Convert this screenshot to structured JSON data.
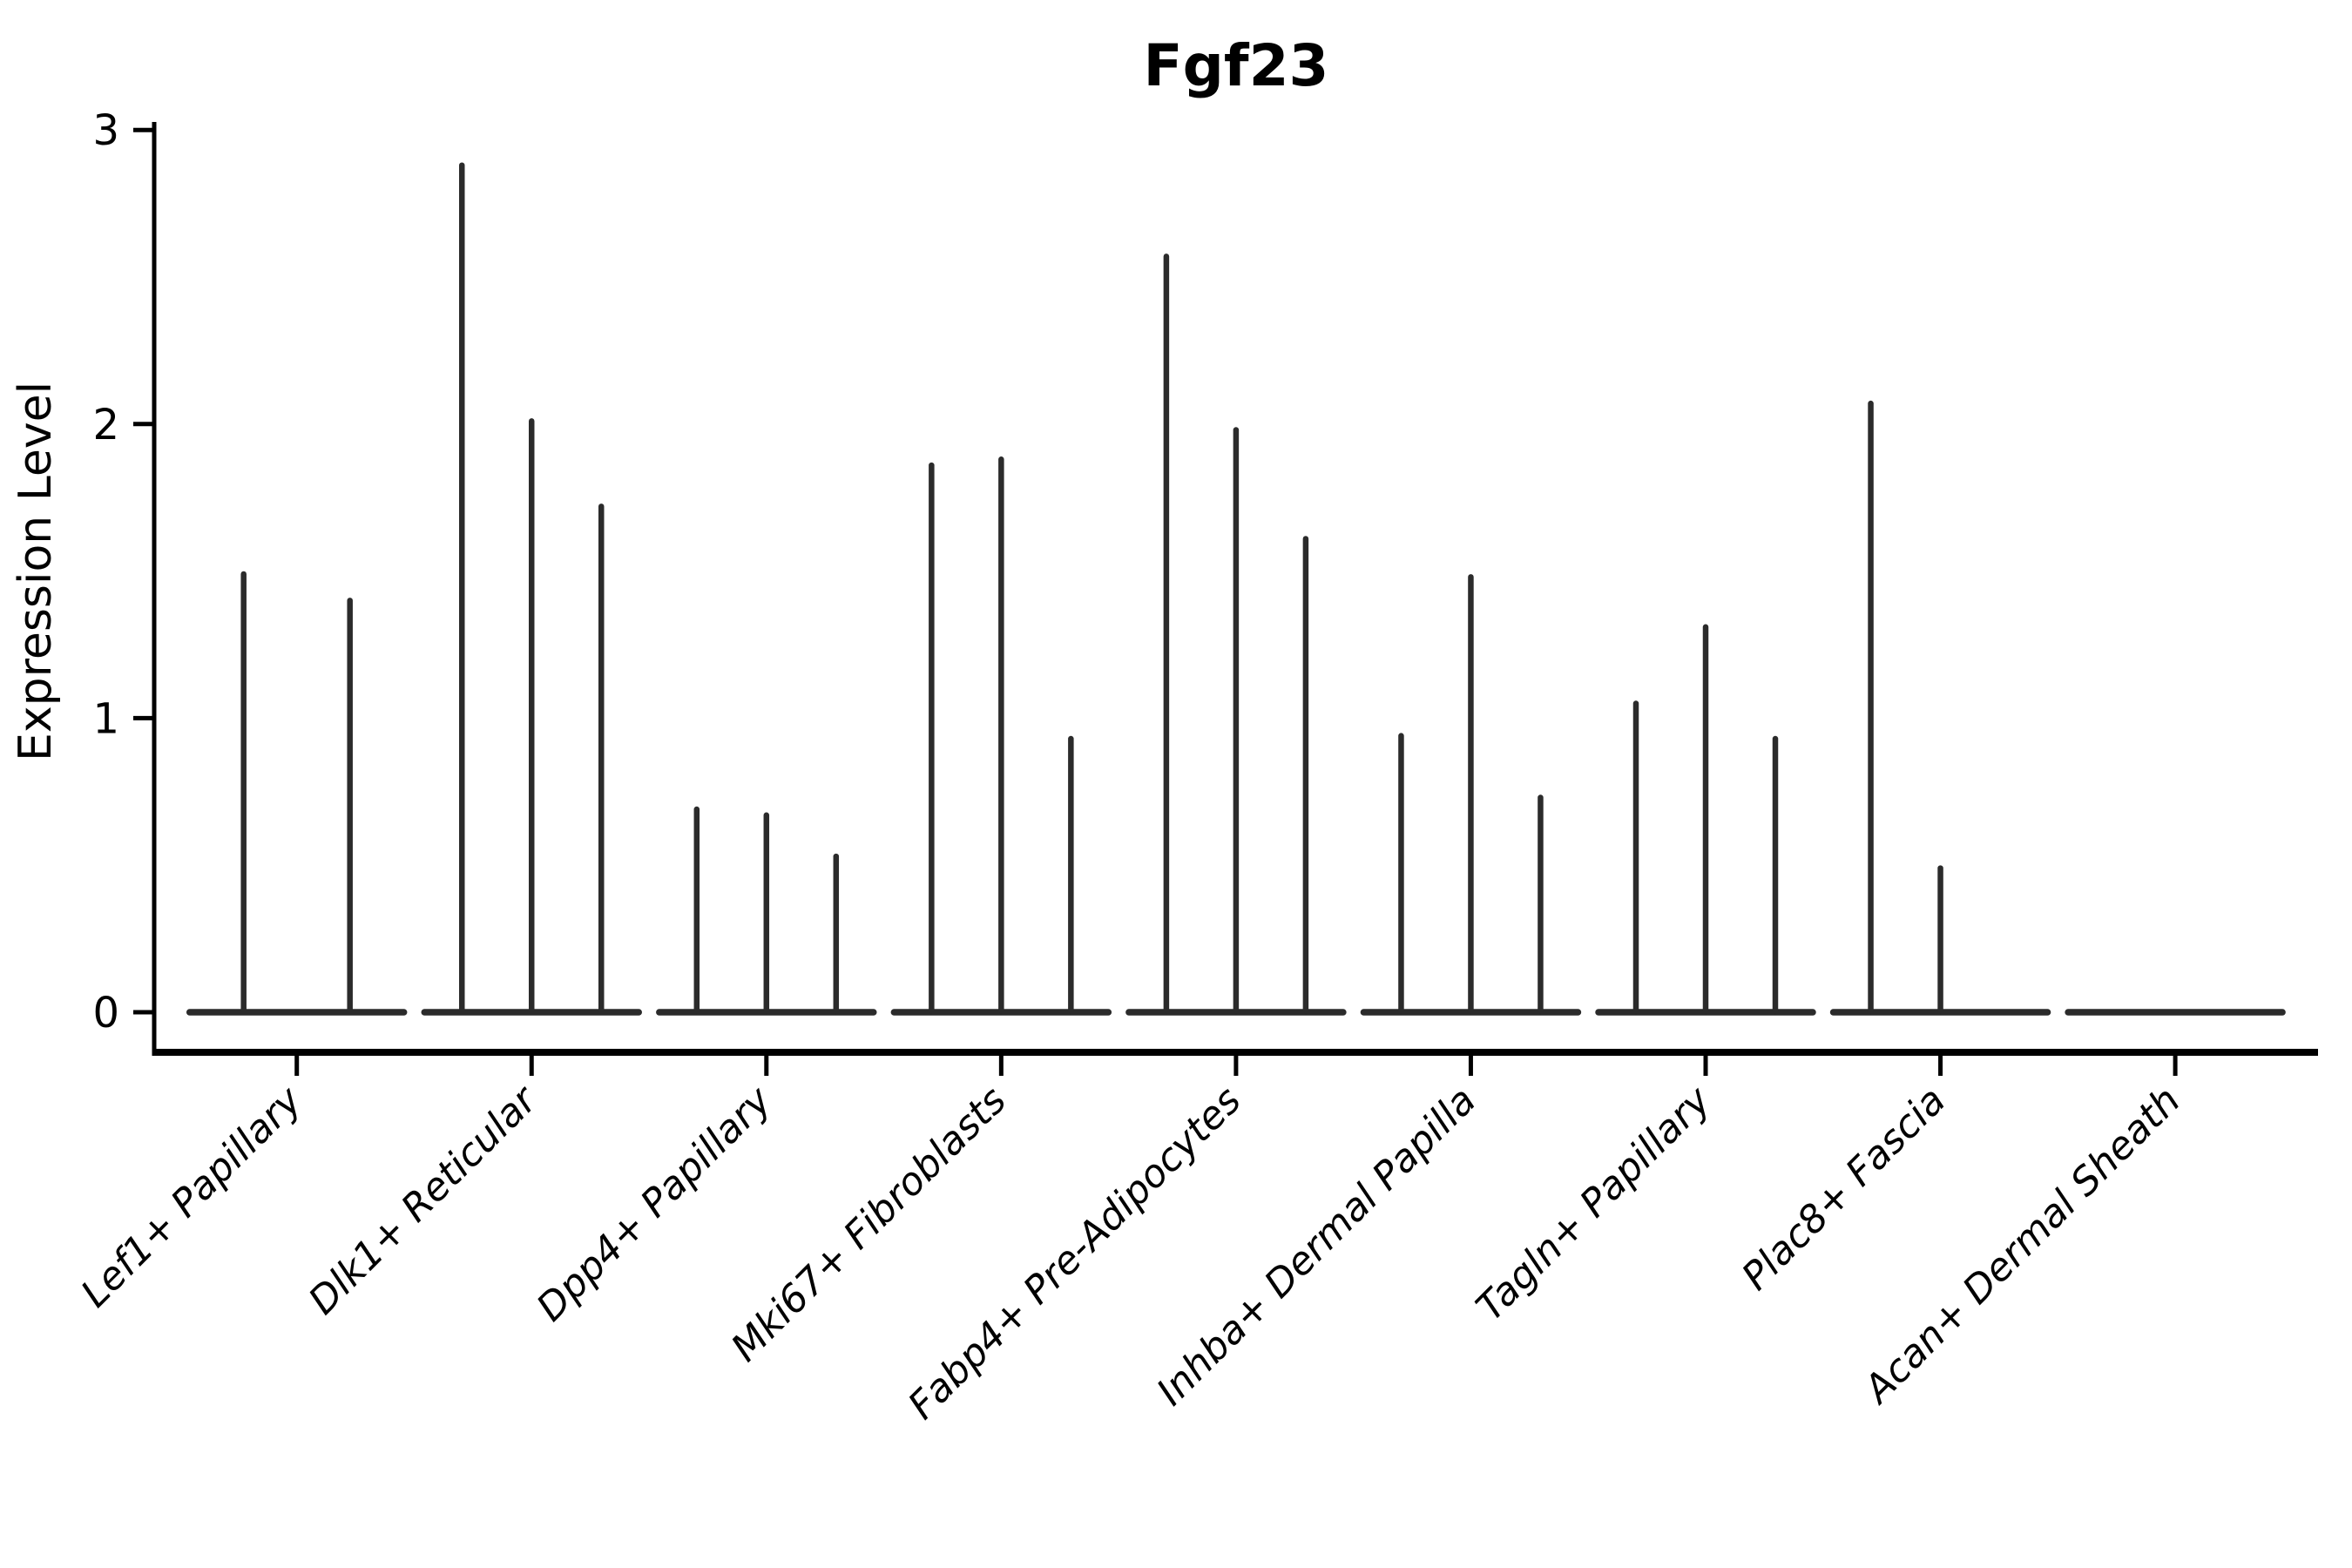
{
  "chart_data": {
    "type": "violin",
    "title": "Fgf23",
    "subtitle": "",
    "xlabel": "",
    "ylabel": "Expression Level",
    "ylim": [
      0,
      3
    ],
    "y_ticks": [
      "0",
      "1",
      "2",
      "3"
    ],
    "y_tick_values": [
      0,
      1,
      2,
      3
    ],
    "grid": false,
    "legend_position": "none",
    "style_note": "needle-thin black violins with flat bodies collapsed at 0; each cluster shows a flat baseline at y=0 with up to three thin spikes rising to the listed maxima",
    "colors": {
      "violin_stroke": "#2b2b2b",
      "axis": "#000000",
      "text": "#000000",
      "background": "#ffffff"
    },
    "categories": [
      "Lef1+ Papillary",
      "Dlk1+ Reticular",
      "Dpp4+ Papillary",
      "Mki67+ Fibroblasts",
      "Fabp4+ Pre-Adipocytes",
      "Inhba+ Dermal Papilla",
      "Tagln+ Papillary",
      "Plac8+ Fascia",
      "Acan+ Dermal Sheath"
    ],
    "series": [
      {
        "cluster": "Lef1+ Papillary",
        "violins": [
          {
            "offset": -61,
            "max": 1.49
          },
          {
            "offset": 61,
            "max": 1.4
          }
        ]
      },
      {
        "cluster": "Dlk1+ Reticular",
        "violins": [
          {
            "offset": -80,
            "max": 2.88
          },
          {
            "offset": 0,
            "max": 2.01
          },
          {
            "offset": 80,
            "max": 1.72
          }
        ]
      },
      {
        "cluster": "Dpp4+ Papillary",
        "violins": [
          {
            "offset": -80,
            "max": 0.69
          },
          {
            "offset": 0,
            "max": 0.67
          },
          {
            "offset": 80,
            "max": 0.53
          }
        ]
      },
      {
        "cluster": "Mki67+ Fibroblasts",
        "violins": [
          {
            "offset": -80,
            "max": 1.86
          },
          {
            "offset": 0,
            "max": 1.88
          },
          {
            "offset": 80,
            "max": 0.93
          }
        ]
      },
      {
        "cluster": "Fabp4+ Pre-Adipocytes",
        "violins": [
          {
            "offset": -80,
            "max": 2.57
          },
          {
            "offset": 0,
            "max": 1.98
          },
          {
            "offset": 80,
            "max": 1.61
          }
        ]
      },
      {
        "cluster": "Inhba+ Dermal Papilla",
        "violins": [
          {
            "offset": -80,
            "max": 0.94
          },
          {
            "offset": 0,
            "max": 1.48
          },
          {
            "offset": 80,
            "max": 0.73
          }
        ]
      },
      {
        "cluster": "Tagln+ Papillary",
        "violins": [
          {
            "offset": -80,
            "max": 1.05
          },
          {
            "offset": 0,
            "max": 1.31
          },
          {
            "offset": 80,
            "max": 0.93
          }
        ]
      },
      {
        "cluster": "Plac8+ Fascia",
        "violins": [
          {
            "offset": -80,
            "max": 2.07
          },
          {
            "offset": 0,
            "max": 0.49
          }
        ]
      },
      {
        "cluster": "Acan+ Dermal Sheath",
        "violins": []
      }
    ]
  }
}
